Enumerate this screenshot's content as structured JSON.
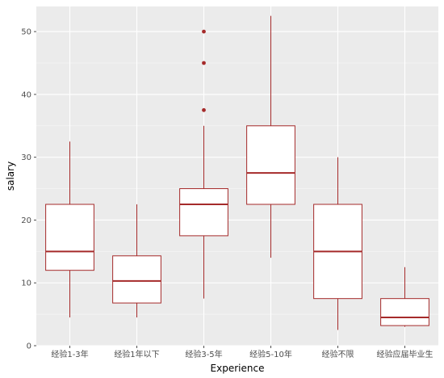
{
  "chart_data": {
    "type": "box",
    "xlabel": "Experience",
    "ylabel": "salary",
    "ylim": [
      0,
      54
    ],
    "yticks": [
      0,
      10,
      20,
      30,
      40,
      50
    ],
    "grid": true,
    "color": "#a52a2a",
    "panel_background": "#ebebeb",
    "categories": [
      "经验1-3年",
      "经验1年以下",
      "经验3-5年",
      "经验5-10年",
      "经验不限",
      "经验应届毕业生"
    ],
    "boxes": [
      {
        "category": "经验1-3年",
        "min": 4.5,
        "q1": 12,
        "median": 15,
        "q3": 22.5,
        "max": 32.5,
        "outliers": []
      },
      {
        "category": "经验1年以下",
        "min": 4.5,
        "q1": 6.8,
        "median": 10.3,
        "q3": 14.3,
        "max": 22.5,
        "outliers": []
      },
      {
        "category": "经验3-5年",
        "min": 7.5,
        "q1": 17.5,
        "median": 22.5,
        "q3": 25,
        "max": 35,
        "outliers": [
          37.5,
          45,
          50
        ]
      },
      {
        "category": "经验5-10年",
        "min": 14,
        "q1": 22.5,
        "median": 27.5,
        "q3": 35,
        "max": 52.5,
        "outliers": []
      },
      {
        "category": "经验不限",
        "min": 2.5,
        "q1": 7.5,
        "median": 15,
        "q3": 22.5,
        "max": 30,
        "outliers": []
      },
      {
        "category": "经验应届毕业生",
        "min": 3,
        "q1": 3.2,
        "median": 4.5,
        "q3": 7.5,
        "max": 12.5,
        "outliers": []
      }
    ]
  }
}
